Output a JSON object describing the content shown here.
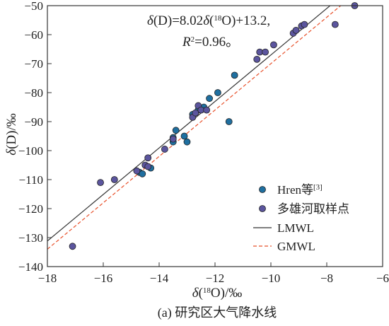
{
  "chart_data": {
    "type": "scatter",
    "caption": "(a) 研究区大气降水线",
    "xlabel": "δ(18O)/‰",
    "ylabel": "δ(D)/‰",
    "xlim": [
      -18,
      -6
    ],
    "ylim": [
      -140,
      -50
    ],
    "x_ticks": [
      -18,
      -16,
      -14,
      -12,
      -10,
      -8,
      -6
    ],
    "y_ticks": [
      -140,
      -130,
      -120,
      -110,
      -100,
      -90,
      -80,
      -70,
      -60,
      -50
    ],
    "grid": false,
    "legend_position": "bottom-right",
    "colors": {
      "hren": "#1f6fa0",
      "duoxiong": "#5b559e",
      "lmwl": "#333333",
      "gmwl": "#e8502a"
    },
    "equation": {
      "line1": "δ(D)=8.02δ(18O)+13.2,",
      "line2": "R2=0.96。"
    },
    "lines": [
      {
        "name": "LMWL",
        "slope": 8.02,
        "intercept": 13.2,
        "style": "solid"
      },
      {
        "name": "GMWL",
        "slope": 8,
        "intercept": 10,
        "style": "dashed"
      }
    ],
    "series": [
      {
        "name": "Hren等[3]",
        "points": [
          [
            -14.7,
            -107.5
          ],
          [
            -14.6,
            -108.0
          ],
          [
            -14.3,
            -106.0
          ],
          [
            -13.5,
            -95.5
          ],
          [
            -13.5,
            -97.0
          ],
          [
            -13.4,
            -93.0
          ],
          [
            -13.1,
            -95.0
          ],
          [
            -13.0,
            -97.0
          ],
          [
            -12.8,
            -87.5
          ],
          [
            -12.6,
            -86.0
          ],
          [
            -12.5,
            -85.5
          ],
          [
            -12.4,
            -85.0
          ],
          [
            -12.2,
            -82.0
          ],
          [
            -11.9,
            -80.0
          ],
          [
            -11.5,
            -90.0
          ],
          [
            -11.3,
            -74.0
          ]
        ]
      },
      {
        "name": "多雄河取样点",
        "points": [
          [
            -17.1,
            -133.0
          ],
          [
            -16.1,
            -111.0
          ],
          [
            -15.6,
            -110.0
          ],
          [
            -14.8,
            -107.0
          ],
          [
            -14.5,
            -105.0
          ],
          [
            -14.4,
            -102.5
          ],
          [
            -14.4,
            -105.5
          ],
          [
            -13.8,
            -99.5
          ],
          [
            -13.5,
            -96.0
          ],
          [
            -12.8,
            -88.5
          ],
          [
            -12.7,
            -87.0
          ],
          [
            -12.6,
            -84.5
          ],
          [
            -12.5,
            -86.0
          ],
          [
            -12.3,
            -86.0
          ],
          [
            -10.5,
            -68.5
          ],
          [
            -10.4,
            -66.0
          ],
          [
            -10.2,
            -66.0
          ],
          [
            -9.9,
            -63.5
          ],
          [
            -9.2,
            -59.5
          ],
          [
            -9.1,
            -58.5
          ],
          [
            -8.9,
            -57.0
          ],
          [
            -8.8,
            -56.5
          ],
          [
            -7.7,
            -56.5
          ],
          [
            -7.0,
            -50.0
          ]
        ]
      }
    ]
  }
}
